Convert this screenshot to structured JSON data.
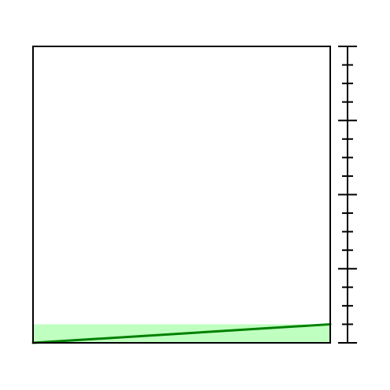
{
  "chart_data": {
    "type": "area",
    "title": "",
    "xlabel": "",
    "ylabel": "",
    "xlim": [
      0,
      1
    ],
    "ylim": [
      0,
      1
    ],
    "grid": false,
    "legend": "none",
    "series": [
      {
        "x": [
          0,
          1
        ],
        "y": [
          0,
          0.0625
        ],
        "band": {
          "lower": 0,
          "upper": 0.0625
        },
        "line_color": "#008000",
        "band_color": "#bfffbf"
      }
    ],
    "right_axis": {
      "major_ticks": [
        0,
        0.25,
        0.5,
        0.75,
        1.0
      ],
      "minor_per_major": 4
    }
  }
}
